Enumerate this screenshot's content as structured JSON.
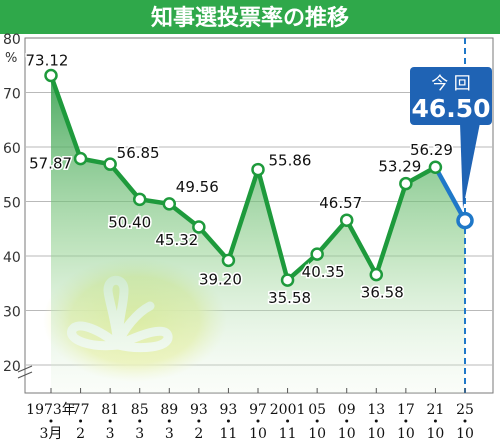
{
  "chart_data": {
    "type": "area",
    "title": "知事選投票率の推移",
    "ylabel": "%",
    "ylim": [
      20,
      80
    ],
    "yticks": [
      20,
      30,
      40,
      50,
      60,
      70,
      80
    ],
    "grid": true,
    "x_labels": [
      {
        "top": "1973年",
        "bottom": "3月"
      },
      {
        "top": "77",
        "bottom": "2"
      },
      {
        "top": "81",
        "bottom": "3"
      },
      {
        "top": "85",
        "bottom": "3"
      },
      {
        "top": "89",
        "bottom": "3"
      },
      {
        "top": "93",
        "bottom": "2"
      },
      {
        "top": "93",
        "bottom": "11"
      },
      {
        "top": "97",
        "bottom": "10"
      },
      {
        "top": "2001",
        "bottom": "11"
      },
      {
        "top": "05",
        "bottom": "10"
      },
      {
        "top": "09",
        "bottom": "10"
      },
      {
        "top": "13",
        "bottom": "10"
      },
      {
        "top": "17",
        "bottom": "10"
      },
      {
        "top": "21",
        "bottom": "10"
      },
      {
        "top": "25",
        "bottom": "10"
      }
    ],
    "series": [
      {
        "values": [
          73.12,
          57.87,
          56.85,
          50.4,
          49.56,
          45.32,
          39.2,
          55.86,
          35.58,
          40.35,
          46.57,
          36.58,
          53.29,
          56.29,
          46.5
        ],
        "labels": [
          "73.12",
          "57.87",
          "56.85",
          "50.40",
          "49.56",
          "45.32",
          "39.20",
          "55.86",
          "35.58",
          "40.35",
          "46.57",
          "36.58",
          "53.29",
          "56.29",
          "46.50"
        ]
      }
    ],
    "callout": {
      "line1": "今 回",
      "line2": "46.50"
    },
    "colors": {
      "title_bg": "#2fa84a",
      "line": "#1e9a3c",
      "latest": "#1f78c8",
      "callout_bg": "#1f63b4",
      "marker_edge": "#1e9a3c",
      "emblem_glow": "#f1f2a6"
    }
  }
}
